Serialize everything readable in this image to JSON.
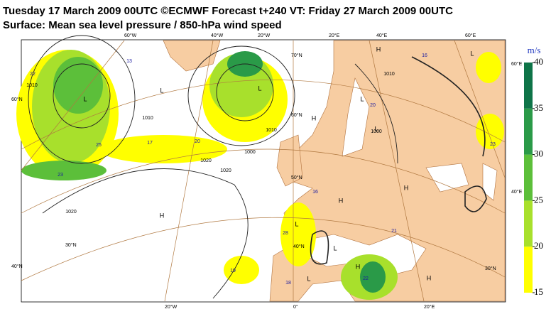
{
  "header": {
    "title": "Tuesday 17 March 2009 00UTC ©ECMWF Forecast t+240 VT: Friday 27 March 2009 00UTC",
    "subtitle": "Surface: Mean sea level pressure / 850-hPa wind speed"
  },
  "colorbar": {
    "unit": "m/s",
    "lim": [
      15,
      40
    ],
    "ticks": [
      15,
      20,
      25,
      30,
      35,
      40
    ],
    "colors": [
      "#ffff00",
      "#a8e02c",
      "#5cbf3a",
      "#2a9a48",
      "#0e7448"
    ]
  },
  "map": {
    "geo_labels": [
      "60°W",
      "40°W",
      "20°W",
      "20°E",
      "40°E",
      "60°E",
      "20°W",
      "0°",
      "20°E",
      "60°N",
      "40°N",
      "60°E",
      "40°E",
      "70°N",
      "60°N",
      "50°N",
      "40°N",
      "30°N",
      "30°N"
    ],
    "pressure_centres": [
      "L",
      "L",
      "L",
      "L",
      "L",
      "L",
      "L",
      "L",
      "L",
      "H",
      "H",
      "H",
      "H",
      "H",
      "H",
      "H"
    ],
    "wind_labels": [
      "22",
      "13",
      "25",
      "17",
      "20",
      "23",
      "16",
      "20",
      "23",
      "19",
      "18",
      "21",
      "22",
      "28",
      "16"
    ],
    "isobar_labels": [
      "1010",
      "1020",
      "1000",
      "1010",
      "1020",
      "1020",
      "1010",
      "1000",
      "1010"
    ]
  }
}
